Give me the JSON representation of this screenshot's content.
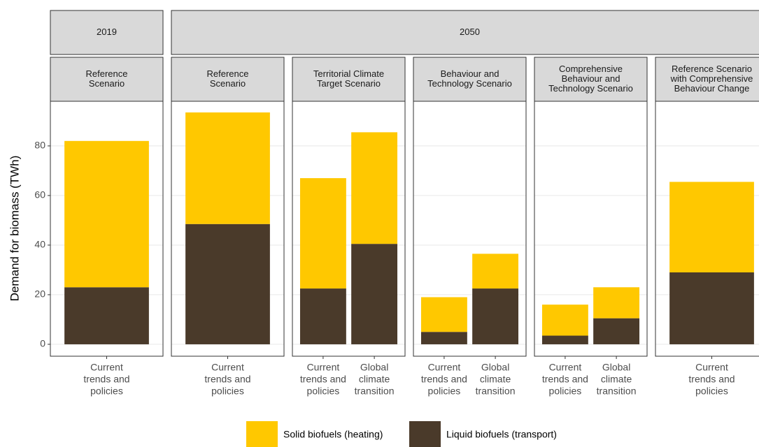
{
  "chart_data": {
    "type": "stacked-bar",
    "y_label": "Demand for biomass (TWh)",
    "ylim": [
      -4.8,
      98
    ],
    "yticks": [
      0,
      20,
      40,
      60,
      80
    ],
    "grid": true,
    "legend": "bottom",
    "series": [
      {
        "name": "Solid biofuels (heating)",
        "color": "#FFC800"
      },
      {
        "name": "Liquid biofuels (transport)",
        "color": "#4A3A2A"
      }
    ],
    "groups": [
      {
        "label": "2019",
        "panels": [
          {
            "title": [
              "Reference",
              "Scenario"
            ],
            "categories": [
              [
                "Current",
                "trends and",
                "policies"
              ]
            ],
            "values": [
              [
                59
              ],
              [
                23
              ]
            ]
          }
        ]
      },
      {
        "label": "2050",
        "panels": [
          {
            "title": [
              "Reference",
              "Scenario"
            ],
            "categories": [
              [
                "Current",
                "trends and",
                "policies"
              ]
            ],
            "values": [
              [
                45
              ],
              [
                48.5
              ]
            ]
          },
          {
            "title": [
              "Territorial Climate",
              "Target Scenario"
            ],
            "categories": [
              [
                "Current",
                "trends and",
                "policies"
              ],
              [
                "Global",
                "climate",
                "transition"
              ]
            ],
            "values": [
              [
                44.5,
                45
              ],
              [
                22.5,
                40.5
              ]
            ]
          },
          {
            "title": [
              "Behaviour and",
              "Technology Scenario"
            ],
            "categories": [
              [
                "Current",
                "trends and",
                "policies"
              ],
              [
                "Global",
                "climate",
                "transition"
              ]
            ],
            "values": [
              [
                14,
                14
              ],
              [
                5,
                22.5
              ]
            ]
          },
          {
            "title": [
              "Comprehensive",
              "Behaviour and",
              "Technology Scenario"
            ],
            "categories": [
              [
                "Current",
                "trends and",
                "policies"
              ],
              [
                "Global",
                "climate",
                "transition"
              ]
            ],
            "values": [
              [
                12.5,
                12.5
              ],
              [
                3.5,
                10.5
              ]
            ]
          },
          {
            "title": [
              "Reference Scenario",
              "with Comprehensive",
              "Behaviour Change"
            ],
            "categories": [
              [
                "Current",
                "trends and",
                "policies"
              ]
            ],
            "values": [
              [
                36.5
              ],
              [
                29
              ]
            ]
          }
        ]
      }
    ]
  }
}
